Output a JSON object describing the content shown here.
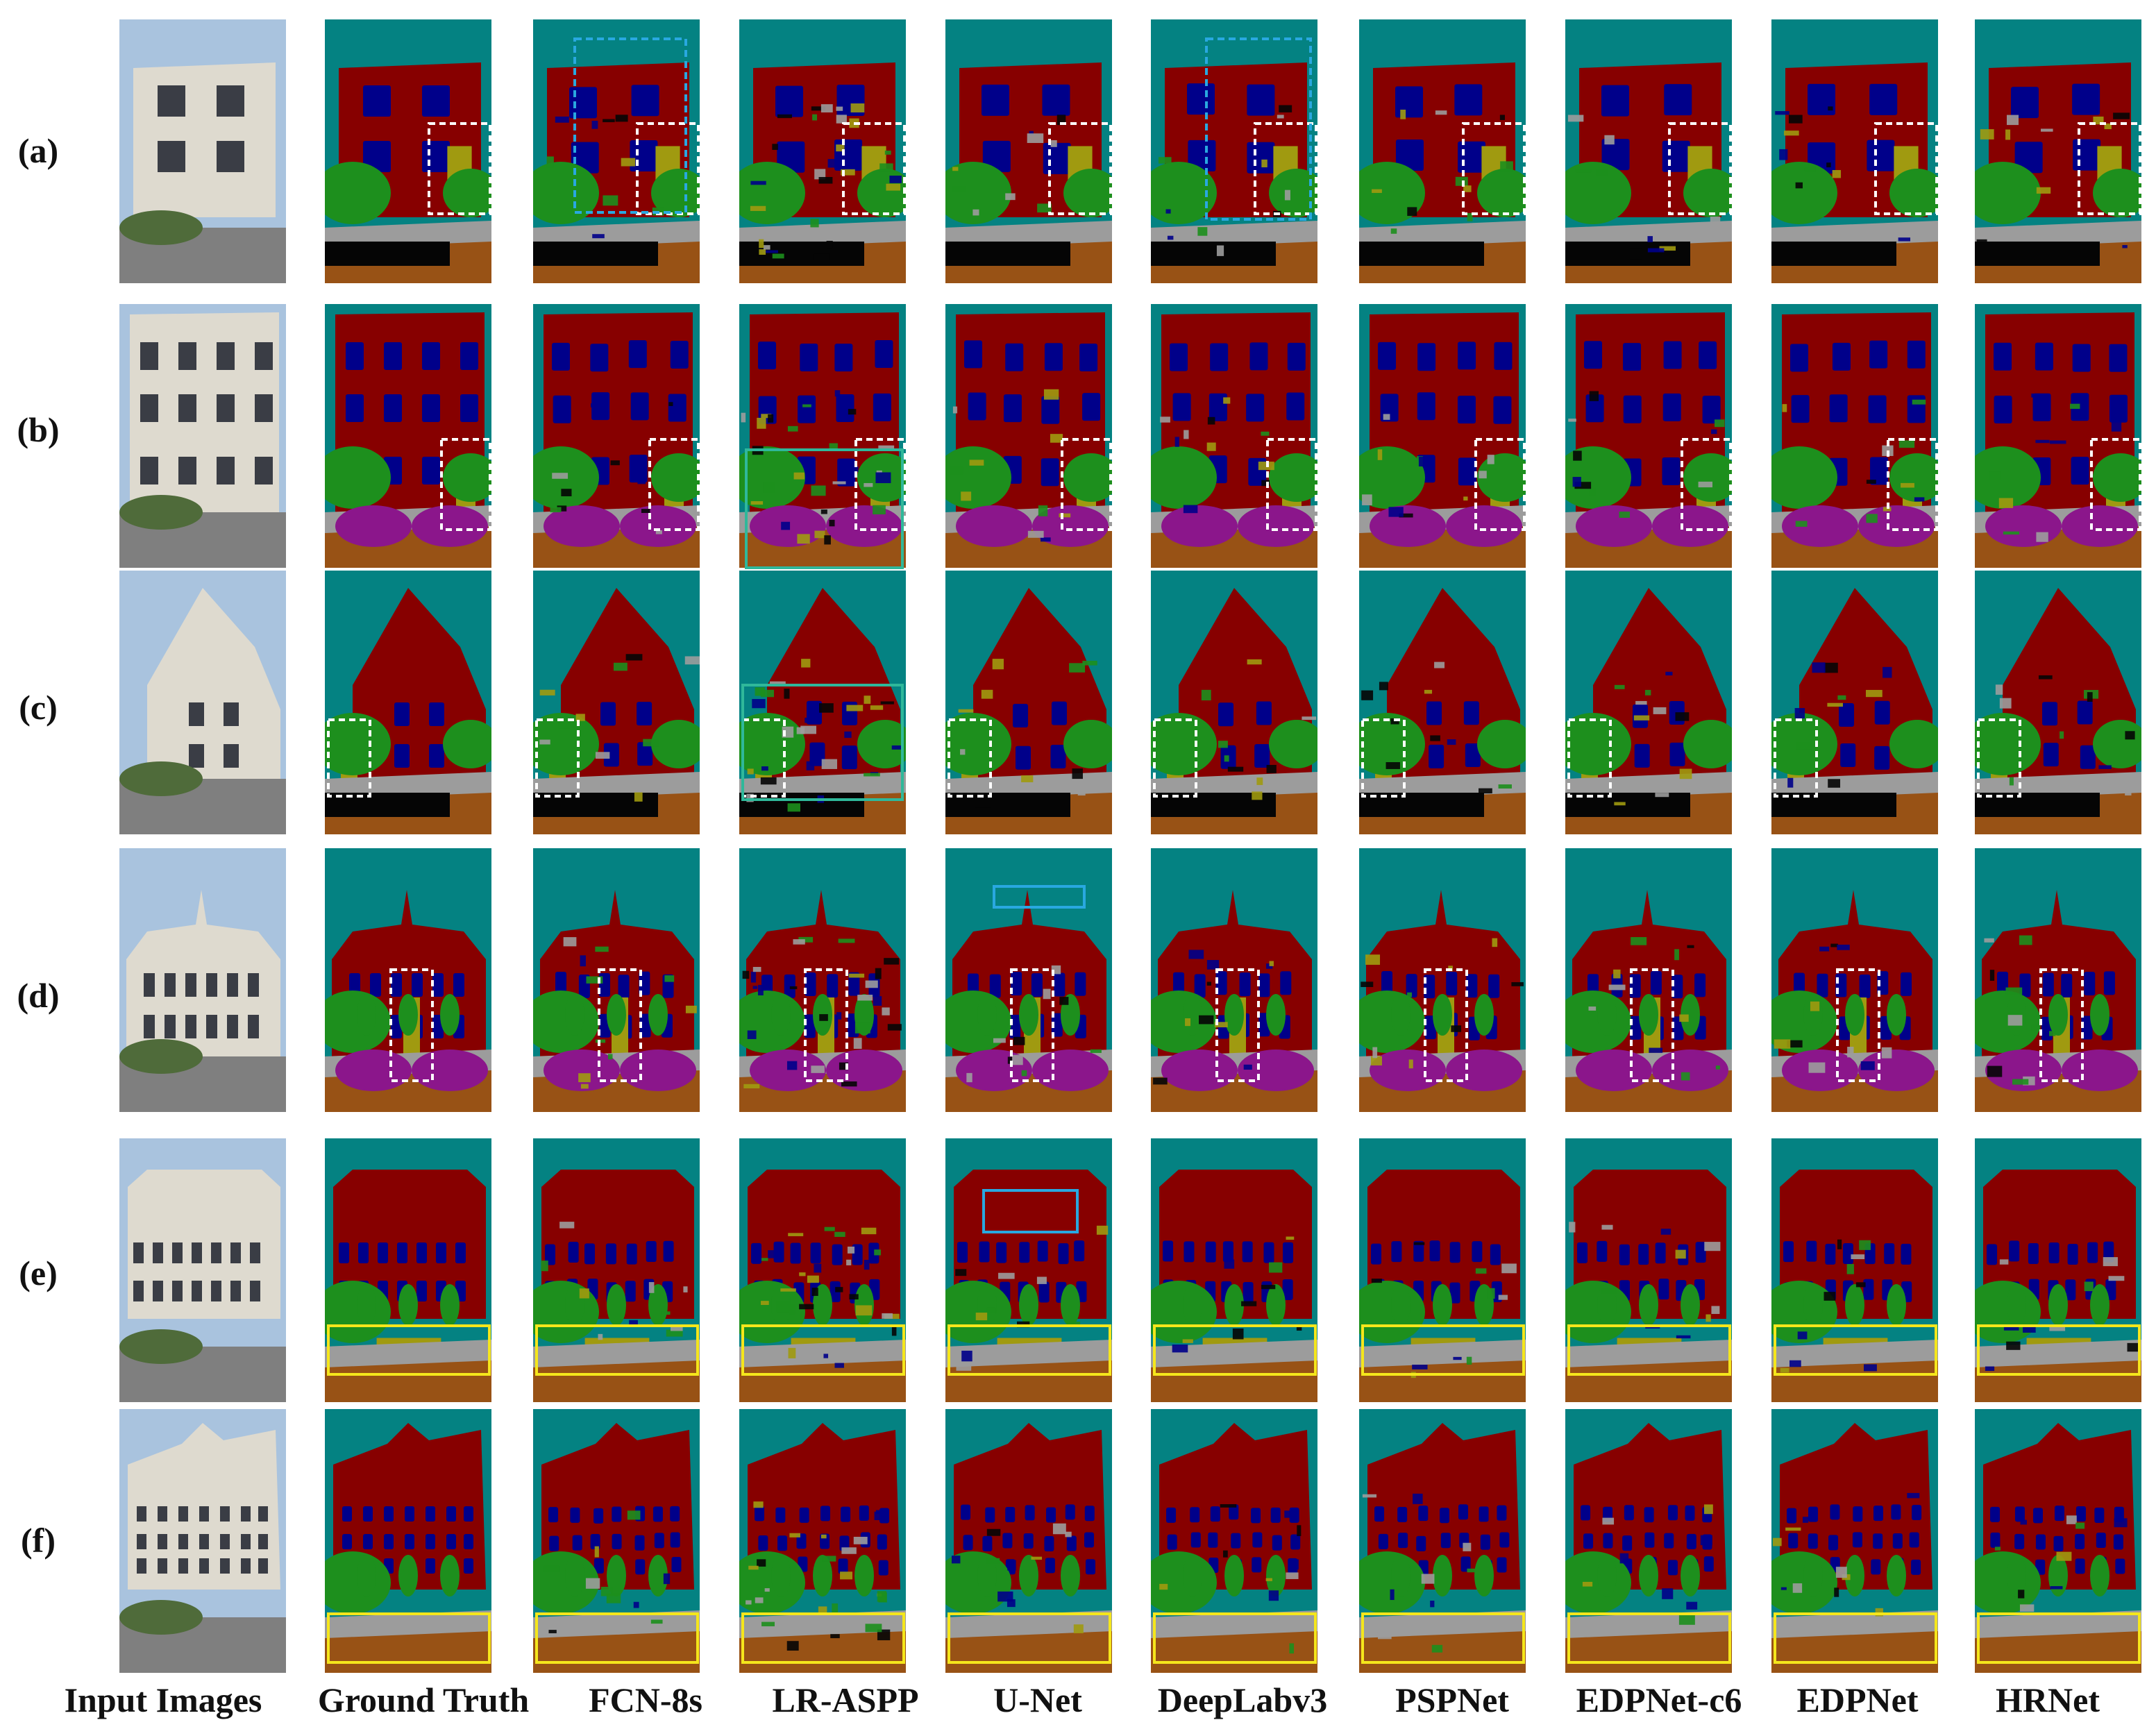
{
  "figure": {
    "row_labels": [
      "(a)",
      "(b)",
      "(c)",
      "(d)",
      "(e)",
      "(f)"
    ],
    "column_labels": [
      "Input Images",
      "Ground Truth",
      "FCN-8s",
      "LR-ASPP",
      "U-Net",
      "DeepLabv3",
      "PSPNet",
      "EDPNet-c6",
      "EDPNet",
      "HRNet"
    ]
  },
  "palette": {
    "sky": "#048282",
    "wall": "#870000",
    "window": "#00008a",
    "door": "#a09a10",
    "vegetation": "#1d8f1d",
    "road": "#985215",
    "pavement": "#9c9c9c",
    "car": "#8b168b",
    "shadow": "#050505",
    "photo_sky": "#a9c3de",
    "photo_wall": "#dedacf",
    "photo_ground": "#7f7f7f",
    "box_white": "#ffffff",
    "box_cyan": "#29a8e0",
    "box_green": "#2fb89a",
    "box_yellow": "#f5e61c"
  }
}
